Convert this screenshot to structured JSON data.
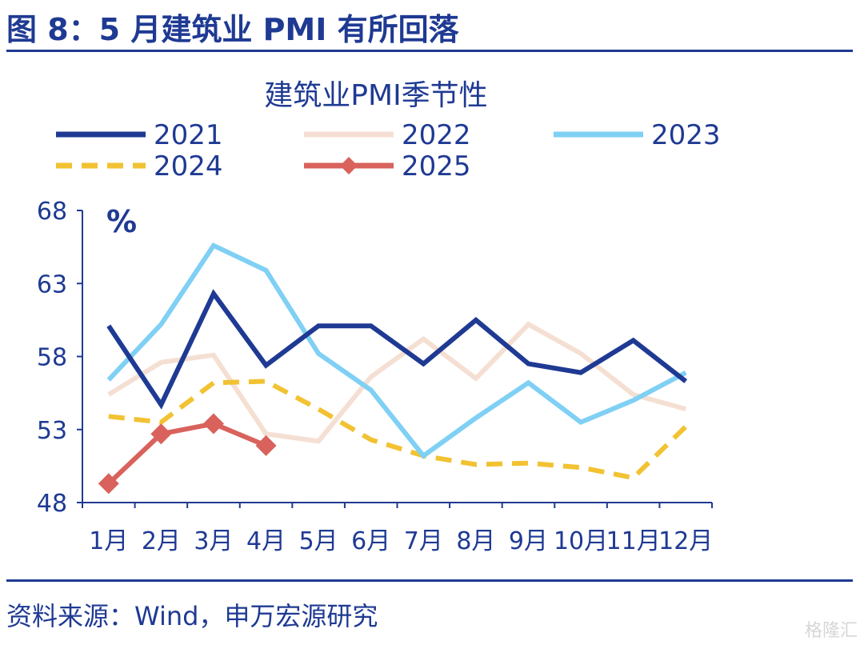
{
  "figure_title": "图 8：5 月建筑业 PMI 有所回落",
  "source": "资料来源：Wind，申万宏源研究",
  "watermark": "格隆汇",
  "chart_data": {
    "type": "line",
    "title": "建筑业PMI季节性",
    "ylabel": "%",
    "xlabel": "",
    "ylim": [
      48,
      68
    ],
    "yticks": [
      48,
      53,
      58,
      63,
      68
    ],
    "categories": [
      "1月",
      "2月",
      "3月",
      "4月",
      "5月",
      "6月",
      "7月",
      "8月",
      "9月",
      "10月",
      "11月",
      "12月"
    ],
    "grid": false,
    "legend_position": "top",
    "series": [
      {
        "name": "2021",
        "color": "#1f3a93",
        "style": "solid",
        "marker": "none",
        "values": [
          60.1,
          54.7,
          62.3,
          57.4,
          60.1,
          60.1,
          57.5,
          60.5,
          57.5,
          56.9,
          59.1,
          56.3
        ]
      },
      {
        "name": "2022",
        "color": "#f5dfd3",
        "style": "solid",
        "marker": "none",
        "values": [
          55.4,
          57.6,
          58.1,
          52.7,
          52.2,
          56.6,
          59.2,
          56.5,
          60.2,
          58.2,
          55.4,
          54.4
        ]
      },
      {
        "name": "2023",
        "color": "#7fd0f4",
        "style": "solid",
        "marker": "none",
        "values": [
          56.4,
          60.2,
          65.6,
          63.9,
          58.2,
          55.7,
          51.2,
          53.8,
          56.2,
          53.5,
          55.0,
          56.9
        ]
      },
      {
        "name": "2024",
        "color": "#f2c232",
        "style": "dashed",
        "marker": "none",
        "values": [
          53.9,
          53.5,
          56.2,
          56.3,
          54.4,
          52.3,
          51.2,
          50.6,
          50.7,
          50.4,
          49.7,
          53.2
        ]
      },
      {
        "name": "2025",
        "color": "#d9625c",
        "style": "solid",
        "marker": "diamond",
        "values": [
          49.3,
          52.7,
          53.4,
          51.9,
          null,
          null,
          null,
          null,
          null,
          null,
          null,
          null
        ]
      }
    ]
  }
}
